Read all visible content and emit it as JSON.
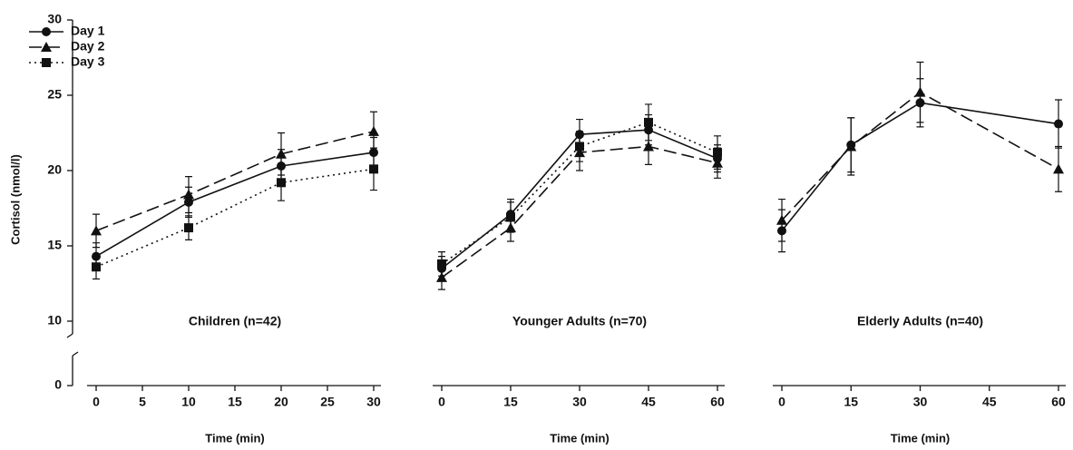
{
  "chart_data": [
    {
      "type": "line",
      "title": "Children (n=42)",
      "x_label": "Time (min)",
      "y_label": "Cortisol (nmol/l)",
      "x": [
        0,
        10,
        20,
        30
      ],
      "xlim": [
        0,
        30
      ],
      "xticks": [
        0,
        5,
        10,
        15,
        20,
        25,
        30
      ],
      "ylim": [
        10,
        30
      ],
      "yticks": [
        0,
        10,
        15,
        20,
        25,
        30
      ],
      "y_break": [
        0,
        10
      ],
      "legend": "upper left",
      "series": [
        {
          "name": "Day 1",
          "color": "#111111",
          "dash": "solid",
          "marker": "circle",
          "values": [
            14.3,
            17.9,
            20.3,
            21.2
          ],
          "errors": [
            0.9,
            1.0,
            1.1,
            1.0
          ]
        },
        {
          "name": "Day 2",
          "color": "#111111",
          "dash": "dashed",
          "marker": "triangle",
          "values": [
            16.0,
            18.4,
            21.1,
            22.6
          ],
          "errors": [
            1.1,
            1.2,
            1.4,
            1.3
          ]
        },
        {
          "name": "Day 3",
          "color": "#111111",
          "dash": "dotted",
          "marker": "square",
          "values": [
            13.6,
            16.2,
            19.2,
            20.1
          ],
          "errors": [
            0.8,
            0.8,
            1.2,
            1.4
          ]
        }
      ]
    },
    {
      "type": "line",
      "title": "Younger Adults (n=70)",
      "x_label": "Time (min)",
      "x": [
        0,
        15,
        30,
        45,
        60
      ],
      "xlim": [
        0,
        60
      ],
      "xticks": [
        0,
        15,
        30,
        45,
        60
      ],
      "series": [
        {
          "name": "Day 1",
          "color": "#111111",
          "dash": "solid",
          "marker": "circle",
          "values": [
            13.5,
            17.1,
            22.4,
            22.7,
            20.8
          ],
          "errors": [
            0.8,
            1.0,
            1.0,
            1.0,
            0.9
          ]
        },
        {
          "name": "Day 2",
          "color": "#111111",
          "dash": "dashed",
          "marker": "triangle",
          "values": [
            12.9,
            16.2,
            21.2,
            21.6,
            20.5
          ],
          "errors": [
            0.8,
            0.9,
            1.2,
            1.2,
            1.0
          ]
        },
        {
          "name": "Day 3",
          "color": "#111111",
          "dash": "dotted",
          "marker": "square",
          "values": [
            13.8,
            16.9,
            21.6,
            23.2,
            21.2
          ],
          "errors": [
            0.8,
            1.0,
            1.0,
            1.2,
            1.1
          ]
        }
      ]
    },
    {
      "type": "line",
      "title": "Elderly Adults (n=40)",
      "x_label": "Time (min)",
      "x": [
        0,
        15,
        30,
        60
      ],
      "xlim": [
        0,
        60
      ],
      "xticks": [
        0,
        15,
        30,
        45,
        60
      ],
      "series": [
        {
          "name": "Day 1",
          "color": "#111111",
          "dash": "solid",
          "marker": "circle",
          "values": [
            16.0,
            21.7,
            24.5,
            23.1
          ],
          "errors": [
            1.4,
            1.8,
            1.6,
            1.6
          ]
        },
        {
          "name": "Day 2",
          "color": "#111111",
          "dash": "dashed",
          "marker": "triangle",
          "values": [
            16.7,
            21.6,
            25.2,
            20.1
          ],
          "errors": [
            1.4,
            1.9,
            2.0,
            1.5
          ]
        }
      ]
    }
  ]
}
